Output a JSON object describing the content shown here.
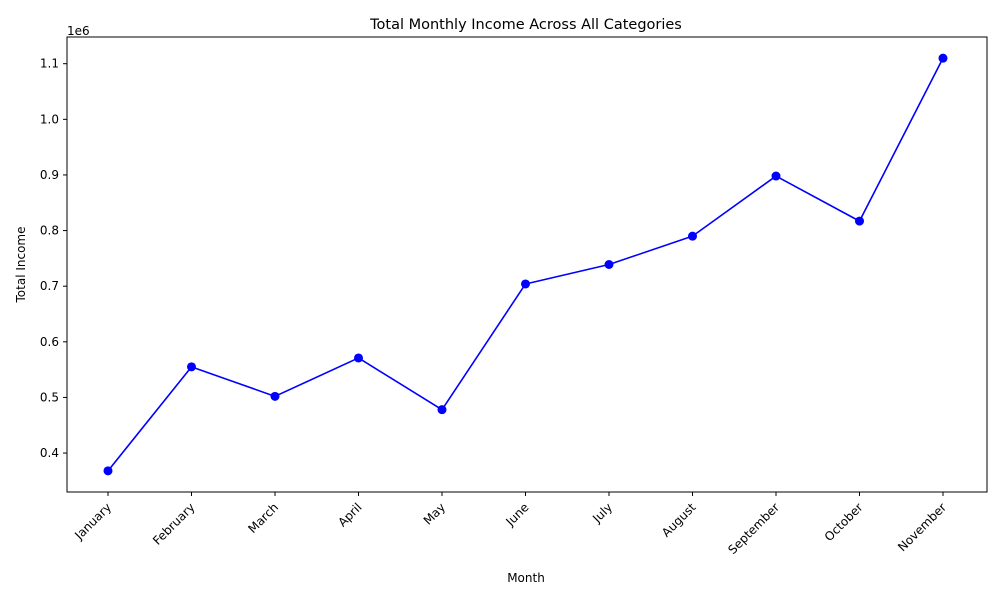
{
  "chart_data": {
    "type": "line",
    "title": "Total Monthly Income Across All Categories",
    "xlabel": "Month",
    "ylabel": "Total Income",
    "y_offset_text": "1e6",
    "y_tick_labels": [
      "0.4",
      "0.5",
      "0.6",
      "0.7",
      "0.8",
      "0.9",
      "1.0",
      "1.1"
    ],
    "categories": [
      "January",
      "February",
      "March",
      "April",
      "May",
      "June",
      "July",
      "August",
      "September",
      "October",
      "November"
    ],
    "series": [
      {
        "values": [
          368000,
          555000,
          502000,
          571000,
          478000,
          704000,
          739000,
          790000,
          898000,
          817000,
          1110000
        ],
        "color": "#0000ff",
        "marker": "circle"
      }
    ],
    "ylim": [
      330000,
      1148000
    ],
    "grid": false,
    "legend": "none"
  }
}
